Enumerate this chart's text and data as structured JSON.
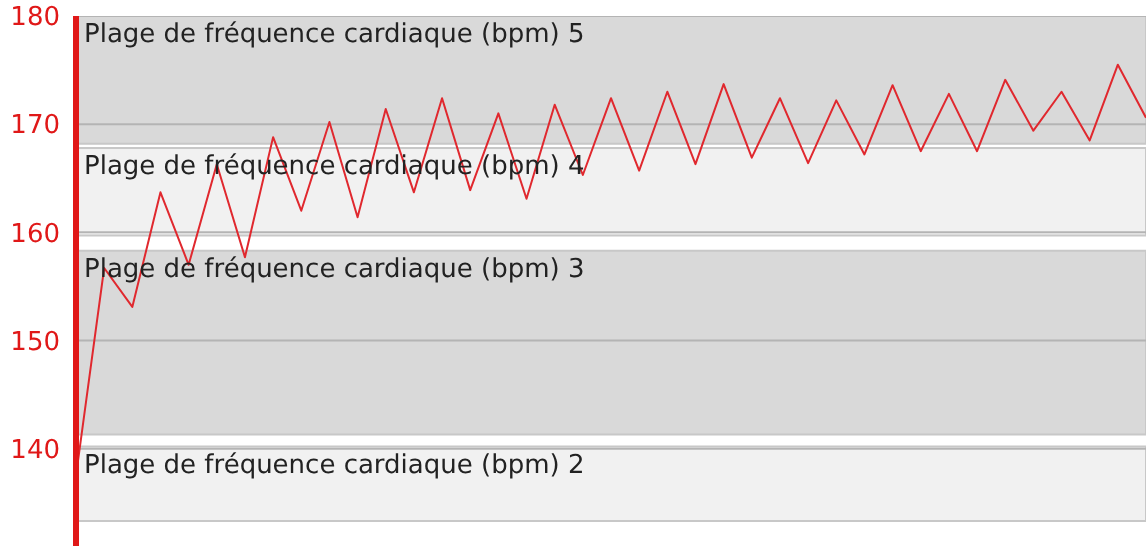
{
  "chart_data": {
    "type": "line",
    "categories": [
      null,
      null,
      null,
      null,
      null,
      null,
      null,
      null,
      null,
      null,
      null,
      null,
      null,
      null,
      null,
      null,
      null,
      null,
      null,
      null,
      null,
      null,
      null,
      null,
      null,
      null,
      null,
      null,
      null,
      null,
      null,
      null,
      null,
      null,
      null,
      null,
      null,
      null,
      null
    ],
    "series": [
      {
        "color": "#e0282e",
        "values": [
          137.5,
          156.7,
          153.1,
          163.7,
          157,
          166.3,
          157.7,
          168.8,
          162,
          170.2,
          161.4,
          171.4,
          163.7,
          172.4,
          163.9,
          171,
          163.1,
          171.8,
          165.3,
          172.4,
          165.7,
          173,
          166.3,
          173.7,
          166.9,
          172.4,
          166.4,
          172.2,
          167.2,
          173.6,
          167.5,
          172.8,
          167.5,
          174.1,
          169.4,
          173,
          168.5,
          175.5,
          170.6
        ]
      }
    ],
    "ylim": [
      131,
      180
    ],
    "yticks": [
      140,
      150,
      160,
      170,
      180
    ],
    "tick_labels": "y",
    "grid": "y",
    "marker": "none",
    "line_style": "solid",
    "bands": [
      {
        "axis": "y",
        "from": 168.2,
        "to": 180,
        "label": "Plage de fréquence cardiaque (bpm) 5",
        "color": "#d9d9d9"
      },
      {
        "axis": "y",
        "from": 159.7,
        "to": 167.8,
        "label": "Plage de fréquence cardiaque (bpm) 4",
        "color": "#f1f1f1"
      },
      {
        "axis": "y",
        "from": 141.3,
        "to": 158.3,
        "label": "Plage de fréquence cardiaque (bpm) 3",
        "color": "#d9d9d9"
      },
      {
        "axis": "y",
        "from": 133.3,
        "to": 140.2,
        "label": "Plage de fréquence cardiaque (bpm) 2",
        "color": "#f1f1f1"
      }
    ]
  }
}
